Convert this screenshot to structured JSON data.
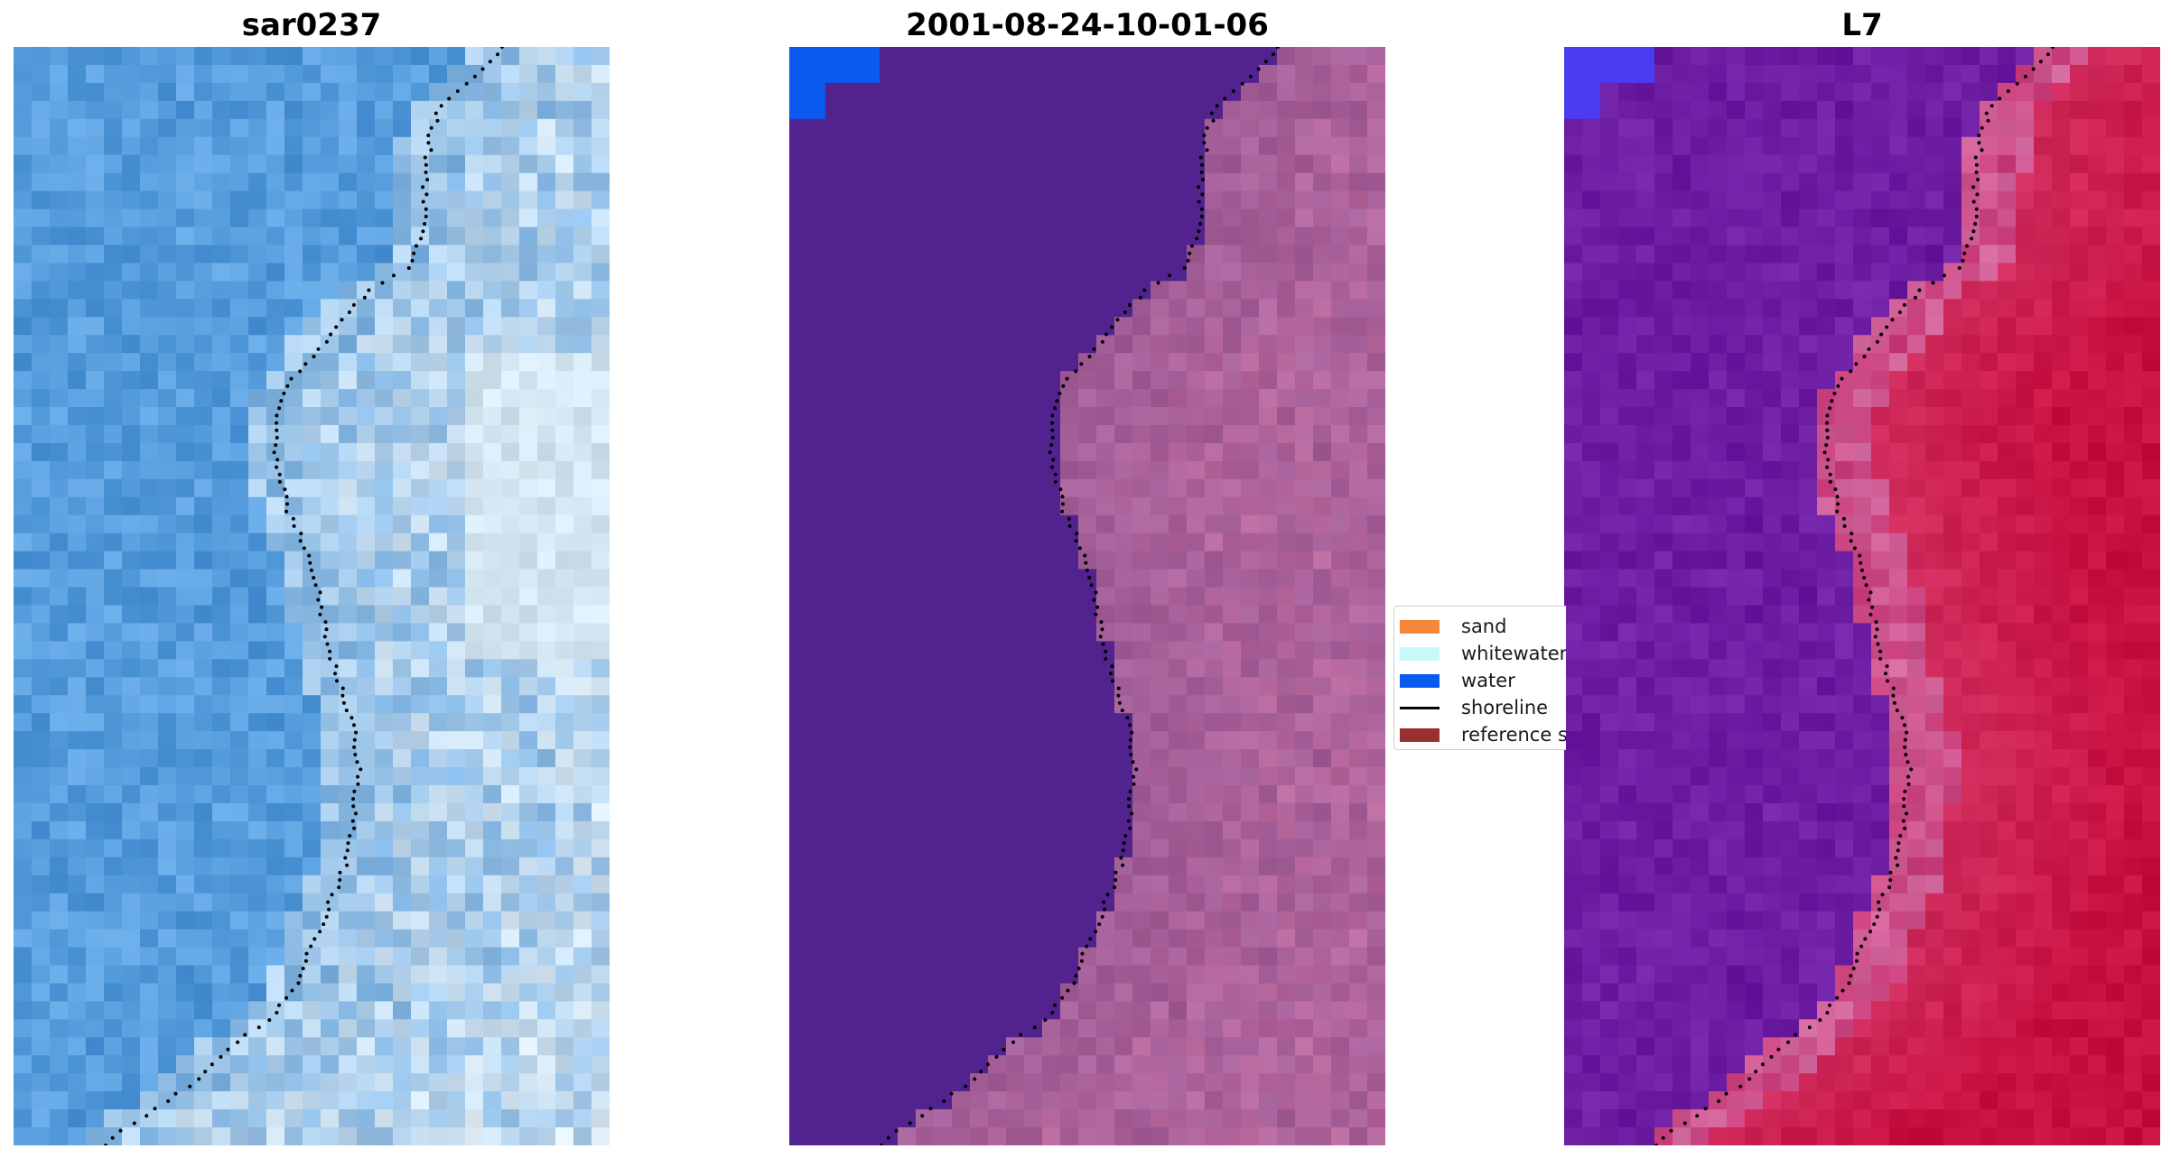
{
  "panels": [
    {
      "title": "sar0237",
      "kind": "rgb-image"
    },
    {
      "title": "2001-08-24-10-01-06",
      "kind": "classified-image"
    },
    {
      "title": "L7",
      "kind": "index-image"
    }
  ],
  "legend": {
    "items": [
      {
        "label": "sand",
        "color": "#f4873a",
        "type": "patch"
      },
      {
        "label": "whitewater",
        "color": "#c8f9f9",
        "type": "patch"
      },
      {
        "label": "water",
        "color": "#0a5af0",
        "type": "patch"
      },
      {
        "label": "shoreline",
        "color": "#000000",
        "type": "line"
      },
      {
        "label": "reference sl",
        "color": "#9a2f2f",
        "type": "patch"
      }
    ]
  },
  "colors": {
    "rgb_water": "#3f8fd8",
    "rgb_foam": "#eef4f6",
    "class_water": "#52238f",
    "class_land": "#9a5a95",
    "class_corner": "#0a5af0",
    "index_water": "#6a1aa0",
    "index_land": "#c81040",
    "index_corner": "#4a3cf0",
    "shoreline": "#000000"
  }
}
